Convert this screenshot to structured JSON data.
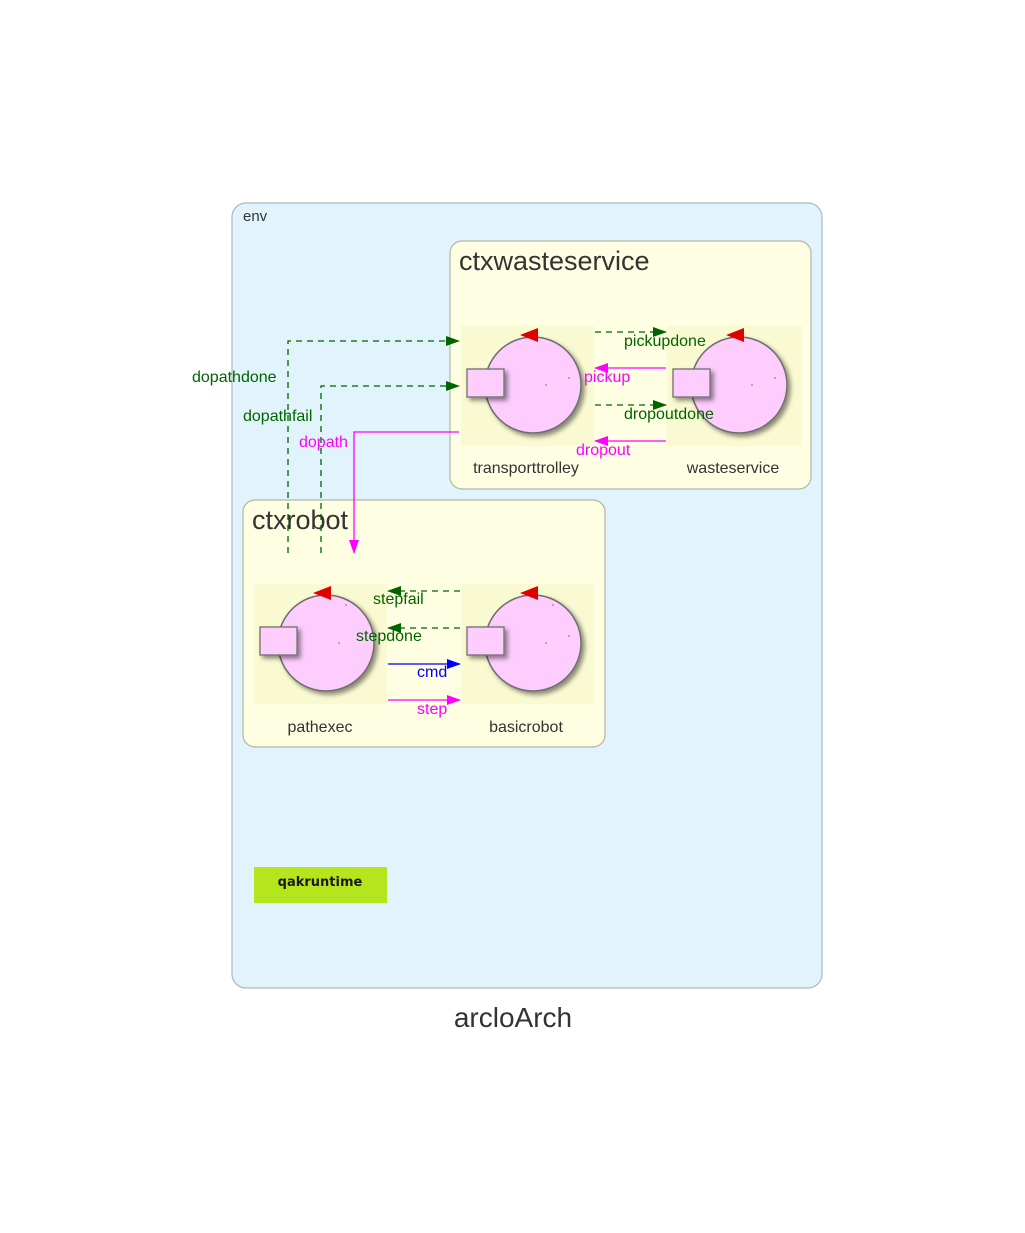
{
  "title": "arcloArch",
  "env": {
    "label": "env"
  },
  "contexts": [
    {
      "id": "ctxwasteservice",
      "label": "ctxwasteservice"
    },
    {
      "id": "ctxrobot",
      "label": "ctxrobot"
    }
  ],
  "actors": [
    {
      "id": "transporttrolley",
      "label": "transporttrolley",
      "context": "ctxwasteservice"
    },
    {
      "id": "wasteservice",
      "label": "wasteservice",
      "context": "ctxwasteservice"
    },
    {
      "id": "pathexec",
      "label": "pathexec",
      "context": "ctxrobot"
    },
    {
      "id": "basicrobot",
      "label": "basicrobot",
      "context": "ctxrobot"
    }
  ],
  "edges": [
    {
      "id": "pickupdone",
      "label": "pickupdone",
      "from": "transporttrolley",
      "to": "wasteservice",
      "kind": "event",
      "color": "#006400"
    },
    {
      "id": "pickup",
      "label": "pickup",
      "from": "wasteservice",
      "to": "transporttrolley",
      "kind": "request",
      "color": "#ff00ff"
    },
    {
      "id": "dropoutdone",
      "label": "dropoutdone",
      "from": "transporttrolley",
      "to": "wasteservice",
      "kind": "event",
      "color": "#006400"
    },
    {
      "id": "dropout",
      "label": "dropout",
      "from": "wasteservice",
      "to": "transporttrolley",
      "kind": "request",
      "color": "#ff00ff"
    },
    {
      "id": "dopathdone",
      "label": "dopathdone",
      "from": "pathexec",
      "to": "transporttrolley",
      "kind": "event",
      "color": "#006400"
    },
    {
      "id": "dopathfail",
      "label": "dopathfail",
      "from": "pathexec",
      "to": "transporttrolley",
      "kind": "event",
      "color": "#006400"
    },
    {
      "id": "dopath",
      "label": "dopath",
      "from": "transporttrolley",
      "to": "ctxrobot",
      "kind": "request",
      "color": "#ff00ff"
    },
    {
      "id": "stepfail",
      "label": "stepfail",
      "from": "basicrobot",
      "to": "pathexec",
      "kind": "event",
      "color": "#006400"
    },
    {
      "id": "stepdone",
      "label": "stepdone",
      "from": "basicrobot",
      "to": "pathexec",
      "kind": "event",
      "color": "#006400"
    },
    {
      "id": "cmd",
      "label": "cmd",
      "from": "pathexec",
      "to": "basicrobot",
      "kind": "dispatch",
      "color": "#0000ff"
    },
    {
      "id": "step",
      "label": "step",
      "from": "pathexec",
      "to": "basicrobot",
      "kind": "request",
      "color": "#ff00ff"
    }
  ],
  "runtime": {
    "label": "qakruntime",
    "color": "#b5e61d"
  },
  "colors": {
    "env_fill": "#e2f4fb",
    "env_stroke": "#a9b9c4",
    "context_fill": "#fefee2",
    "context_stroke": "#b5b5a8",
    "actor_fill": "#fdcdfd",
    "actor_tile": "#fafad2",
    "pointer": "#e00000"
  }
}
